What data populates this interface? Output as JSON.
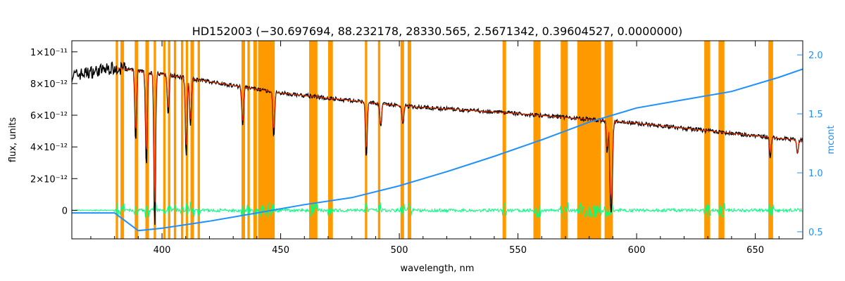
{
  "chart_data": {
    "type": "line",
    "title": "HD152003    (−30.697694, 88.232178, 28330.565, 2.5671342, 0.39604527, 0.0000000)",
    "xlabel": "wavelength, nm",
    "ylabel": "flux, units",
    "y2label": "mcont",
    "xlim": [
      362,
      670
    ],
    "ylim": [
      -1.8e-12,
      1.07e-11
    ],
    "y2lim": [
      0.44,
      2.12
    ],
    "x_ticks": [
      400,
      450,
      500,
      550,
      600,
      650
    ],
    "y_ticks": [
      {
        "value": 0,
        "label": "0"
      },
      {
        "value": 2e-12,
        "label": "2×10⁻¹²"
      },
      {
        "value": 4e-12,
        "label": "4×10⁻¹²"
      },
      {
        "value": 6e-12,
        "label": "6×10⁻¹²"
      },
      {
        "value": 8e-12,
        "label": "8×10⁻¹²"
      },
      {
        "value": 1e-11,
        "label": "1×10⁻¹¹"
      }
    ],
    "y2_ticks": [
      0.5,
      1.0,
      1.5,
      2.0
    ],
    "masked_regions": [
      [
        380.5,
        381.5
      ],
      [
        382.5,
        384
      ],
      [
        388.5,
        390
      ],
      [
        393,
        394.5
      ],
      [
        396.5,
        397.5
      ],
      [
        400.5,
        401.5
      ],
      [
        402.5,
        403.5
      ],
      [
        405,
        406
      ],
      [
        408,
        409
      ],
      [
        410,
        411
      ],
      [
        412,
        413.5
      ],
      [
        415,
        416
      ],
      [
        433.5,
        435
      ],
      [
        436,
        437
      ],
      [
        438.5,
        440
      ],
      [
        440.5,
        447.5
      ],
      [
        462,
        465.5
      ],
      [
        470,
        472
      ],
      [
        485.5,
        486.5
      ],
      [
        491,
        492
      ],
      [
        500.5,
        502
      ],
      [
        503.5,
        505
      ],
      [
        543.5,
        545
      ],
      [
        556.5,
        559.5
      ],
      [
        568,
        571
      ],
      [
        575,
        585
      ],
      [
        586.5,
        590
      ],
      [
        628.5,
        631
      ],
      [
        634.5,
        637
      ],
      [
        655.5,
        657.5
      ]
    ],
    "series": [
      {
        "role": "observed",
        "color": "#000000",
        "continuum": [
          [
            362,
            8.5e-12
          ],
          [
            380,
            9e-12
          ],
          [
            400,
            8.6e-12
          ],
          [
            450,
            7.4e-12
          ],
          [
            500,
            6.6e-12
          ],
          [
            550,
            6.1e-12
          ],
          [
            600,
            5.5e-12
          ],
          [
            650,
            4.7e-12
          ],
          [
            670,
            4.4e-12
          ]
        ],
        "lines": [
          {
            "x": 388.9,
            "depth": 4.5e-12
          },
          {
            "x": 393.4,
            "depth": 6e-12
          },
          {
            "x": 396.9,
            "depth": 5.8e-12
          },
          {
            "x": 397.0,
            "depth": 4e-12
          },
          {
            "x": 402.6,
            "depth": 2.5e-12
          },
          {
            "x": 410.2,
            "depth": 5e-12
          },
          {
            "x": 412.0,
            "depth": 3e-12
          },
          {
            "x": 434.0,
            "depth": 2.5e-12
          },
          {
            "x": 447.1,
            "depth": 2.8e-12
          },
          {
            "x": 486.1,
            "depth": 3.5e-12
          },
          {
            "x": 492.2,
            "depth": 1.5e-12
          },
          {
            "x": 501.5,
            "depth": 1.2e-12
          },
          {
            "x": 587.6,
            "depth": 2e-12
          },
          {
            "x": 589.0,
            "depth": 4.5e-12
          },
          {
            "x": 589.6,
            "depth": 3.8e-12
          },
          {
            "x": 656.3,
            "depth": 1.2e-12
          },
          {
            "x": 667.8,
            "depth": 9e-13
          }
        ]
      },
      {
        "role": "fit",
        "color": "#ff2a00"
      },
      {
        "role": "model",
        "color": "#ffff00"
      },
      {
        "role": "residuals",
        "color": "#00ff7f",
        "level": 0
      },
      {
        "name": "mcont",
        "color": "#1e90ff",
        "axis": "right",
        "x": [
          362,
          380,
          390,
          400,
          420,
          440,
          460,
          480,
          500,
          520,
          540,
          560,
          580,
          600,
          620,
          640,
          660,
          670
        ],
        "y": [
          0.66,
          0.66,
          0.51,
          0.53,
          0.59,
          0.66,
          0.73,
          0.79,
          0.89,
          1.01,
          1.14,
          1.28,
          1.43,
          1.55,
          1.62,
          1.69,
          1.81,
          1.88
        ]
      }
    ]
  }
}
